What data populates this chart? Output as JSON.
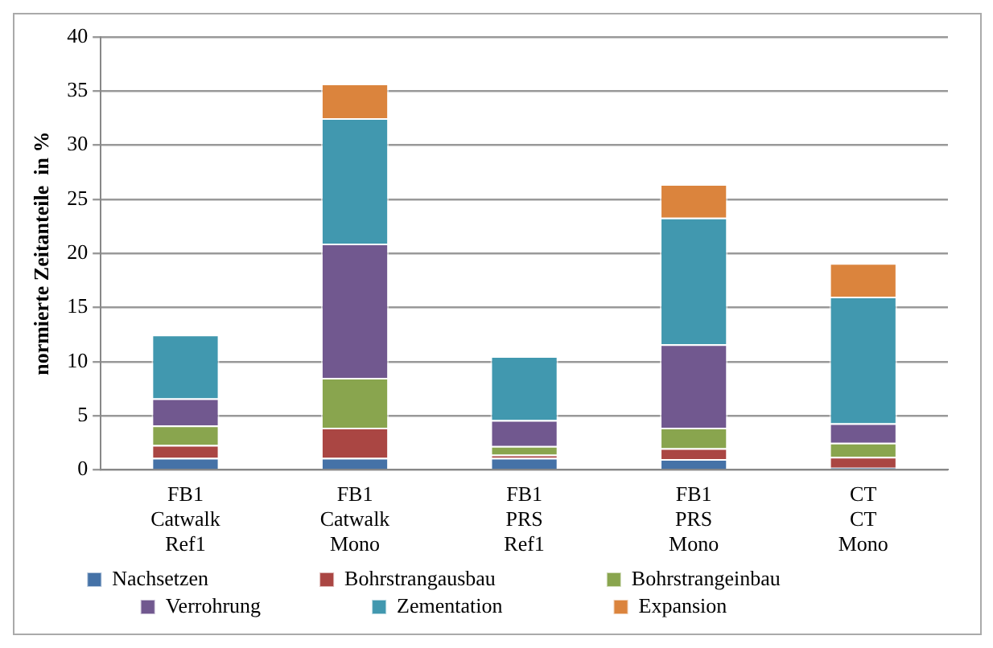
{
  "chart_data": {
    "type": "bar",
    "stacked": true,
    "ylabel": "normierte Zeitanteile  in %",
    "categories": [
      "FB1\nCatwalk\nRef1",
      "FB1\nCatwalk\nMono",
      "FB1\nPRS\nRef1",
      "FB1\nPRS\nMono",
      "CT\nCT\nMono"
    ],
    "series": [
      {
        "name": "Nachsetzen",
        "color": "#4572a7",
        "values": [
          1.1,
          1.1,
          1.1,
          1.0,
          0.2
        ]
      },
      {
        "name": "Bohrstrangausbau",
        "color": "#aa4643",
        "values": [
          1.2,
          2.8,
          0.3,
          1.0,
          1.0
        ]
      },
      {
        "name": "Bohrstrangeinbau",
        "color": "#89a54e",
        "values": [
          1.8,
          4.6,
          0.8,
          1.9,
          1.3
        ]
      },
      {
        "name": "Verrohrung",
        "color": "#71588f",
        "values": [
          2.5,
          12.4,
          2.4,
          7.7,
          1.8
        ]
      },
      {
        "name": "Zementation",
        "color": "#4198af",
        "values": [
          5.9,
          11.6,
          5.9,
          11.7,
          11.7
        ]
      },
      {
        "name": "Expansion",
        "color": "#db843d",
        "values": [
          0,
          3.2,
          0,
          3.1,
          3.1
        ]
      }
    ],
    "ylim": [
      0,
      40
    ],
    "yticks": [
      0,
      5,
      10,
      15,
      20,
      25,
      30,
      35,
      40
    ],
    "grid": "y",
    "legend": "bottom"
  }
}
